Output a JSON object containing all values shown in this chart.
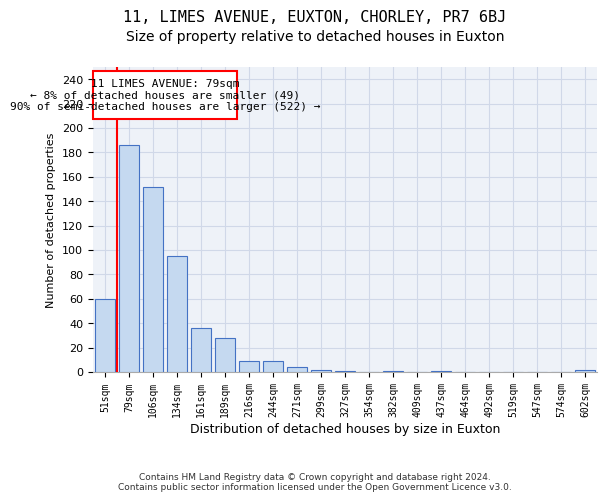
{
  "title": "11, LIMES AVENUE, EUXTON, CHORLEY, PR7 6BJ",
  "subtitle": "Size of property relative to detached houses in Euxton",
  "xlabel": "Distribution of detached houses by size in Euxton",
  "ylabel": "Number of detached properties",
  "footer_line1": "Contains HM Land Registry data © Crown copyright and database right 2024.",
  "footer_line2": "Contains public sector information licensed under the Open Government Licence v3.0.",
  "categories": [
    "51sqm",
    "79sqm",
    "106sqm",
    "134sqm",
    "161sqm",
    "189sqm",
    "216sqm",
    "244sqm",
    "271sqm",
    "299sqm",
    "327sqm",
    "354sqm",
    "382sqm",
    "409sqm",
    "437sqm",
    "464sqm",
    "492sqm",
    "519sqm",
    "547sqm",
    "574sqm",
    "602sqm"
  ],
  "values": [
    60,
    186,
    152,
    95,
    36,
    28,
    9,
    9,
    4,
    2,
    1,
    0,
    1,
    0,
    1,
    0,
    0,
    0,
    0,
    0,
    2
  ],
  "bar_color": "#c5d9f0",
  "bar_edge_color": "#4472c4",
  "annotation_line1": "11 LIMES AVENUE: 79sqm",
  "annotation_line2": "← 8% of detached houses are smaller (49)",
  "annotation_line3": "90% of semi-detached houses are larger (522) →",
  "redline_bar_index": 1,
  "ylim": [
    0,
    250
  ],
  "yticks": [
    0,
    20,
    40,
    60,
    80,
    100,
    120,
    140,
    160,
    180,
    200,
    220,
    240
  ],
  "grid_color": "#d0d8e8",
  "bg_color": "#eef2f8",
  "title_fontsize": 11,
  "subtitle_fontsize": 10,
  "bar_width": 0.8
}
